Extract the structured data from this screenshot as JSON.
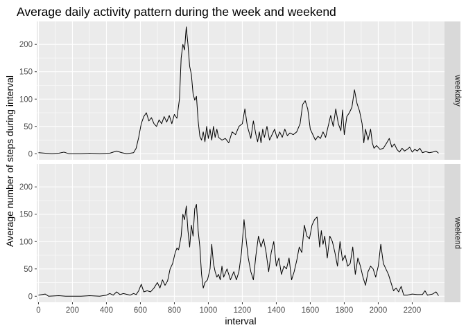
{
  "chart_data": {
    "type": "line",
    "title": "Average daily activity pattern during the week and weekend",
    "xlabel": "interval",
    "ylabel": "Average number of steps during interval",
    "xlim": [
      -10,
      2390
    ],
    "ylim": [
      -11,
      242
    ],
    "xticks": [
      0,
      200,
      400,
      600,
      800,
      1000,
      1200,
      1400,
      1600,
      1800,
      2000,
      2200
    ],
    "yticks": [
      0,
      50,
      100,
      150,
      200
    ],
    "grid": true,
    "panel_background": "#ebebeb",
    "strip_background": "#d9d9d9",
    "line_color": "#000000",
    "facets": [
      {
        "label": "weekday",
        "points": [
          [
            0,
            2
          ],
          [
            40,
            1
          ],
          [
            80,
            0
          ],
          [
            120,
            1
          ],
          [
            150,
            3
          ],
          [
            180,
            0
          ],
          [
            250,
            0
          ],
          [
            300,
            1
          ],
          [
            360,
            0
          ],
          [
            420,
            1
          ],
          [
            460,
            5
          ],
          [
            490,
            2
          ],
          [
            520,
            0
          ],
          [
            560,
            2
          ],
          [
            575,
            10
          ],
          [
            590,
            30
          ],
          [
            605,
            55
          ],
          [
            620,
            68
          ],
          [
            635,
            75
          ],
          [
            650,
            60
          ],
          [
            665,
            66
          ],
          [
            680,
            55
          ],
          [
            695,
            50
          ],
          [
            710,
            62
          ],
          [
            725,
            55
          ],
          [
            740,
            68
          ],
          [
            755,
            58
          ],
          [
            770,
            70
          ],
          [
            785,
            55
          ],
          [
            800,
            72
          ],
          [
            815,
            65
          ],
          [
            830,
            100
          ],
          [
            840,
            175
          ],
          [
            850,
            200
          ],
          [
            860,
            190
          ],
          [
            870,
            232
          ],
          [
            880,
            200
          ],
          [
            890,
            160
          ],
          [
            900,
            145
          ],
          [
            910,
            110
          ],
          [
            920,
            98
          ],
          [
            930,
            105
          ],
          [
            940,
            60
          ],
          [
            950,
            32
          ],
          [
            960,
            25
          ],
          [
            970,
            40
          ],
          [
            980,
            22
          ],
          [
            990,
            50
          ],
          [
            1000,
            28
          ],
          [
            1010,
            45
          ],
          [
            1020,
            25
          ],
          [
            1030,
            50
          ],
          [
            1040,
            30
          ],
          [
            1050,
            45
          ],
          [
            1060,
            30
          ],
          [
            1080,
            25
          ],
          [
            1100,
            28
          ],
          [
            1120,
            20
          ],
          [
            1140,
            40
          ],
          [
            1160,
            35
          ],
          [
            1180,
            50
          ],
          [
            1200,
            55
          ],
          [
            1215,
            82
          ],
          [
            1230,
            50
          ],
          [
            1250,
            28
          ],
          [
            1265,
            60
          ],
          [
            1280,
            35
          ],
          [
            1290,
            22
          ],
          [
            1300,
            40
          ],
          [
            1310,
            20
          ],
          [
            1320,
            45
          ],
          [
            1330,
            30
          ],
          [
            1345,
            50
          ],
          [
            1360,
            25
          ],
          [
            1375,
            35
          ],
          [
            1390,
            45
          ],
          [
            1405,
            28
          ],
          [
            1420,
            40
          ],
          [
            1435,
            30
          ],
          [
            1450,
            45
          ],
          [
            1465,
            33
          ],
          [
            1480,
            38
          ],
          [
            1500,
            35
          ],
          [
            1520,
            40
          ],
          [
            1540,
            55
          ],
          [
            1555,
            90
          ],
          [
            1570,
            97
          ],
          [
            1585,
            82
          ],
          [
            1600,
            45
          ],
          [
            1615,
            35
          ],
          [
            1630,
            25
          ],
          [
            1645,
            32
          ],
          [
            1660,
            28
          ],
          [
            1675,
            40
          ],
          [
            1690,
            30
          ],
          [
            1705,
            50
          ],
          [
            1720,
            70
          ],
          [
            1735,
            50
          ],
          [
            1750,
            82
          ],
          [
            1765,
            55
          ],
          [
            1780,
            42
          ],
          [
            1790,
            80
          ],
          [
            1800,
            35
          ],
          [
            1815,
            68
          ],
          [
            1830,
            75
          ],
          [
            1845,
            85
          ],
          [
            1860,
            117
          ],
          [
            1875,
            92
          ],
          [
            1890,
            78
          ],
          [
            1905,
            55
          ],
          [
            1915,
            20
          ],
          [
            1925,
            45
          ],
          [
            1940,
            25
          ],
          [
            1955,
            45
          ],
          [
            1965,
            20
          ],
          [
            1975,
            10
          ],
          [
            1990,
            15
          ],
          [
            2010,
            8
          ],
          [
            2030,
            10
          ],
          [
            2050,
            20
          ],
          [
            2065,
            28
          ],
          [
            2080,
            12
          ],
          [
            2095,
            18
          ],
          [
            2110,
            8
          ],
          [
            2125,
            3
          ],
          [
            2140,
            10
          ],
          [
            2155,
            5
          ],
          [
            2170,
            8
          ],
          [
            2185,
            12
          ],
          [
            2200,
            3
          ],
          [
            2215,
            8
          ],
          [
            2230,
            5
          ],
          [
            2245,
            10
          ],
          [
            2260,
            2
          ],
          [
            2280,
            4
          ],
          [
            2300,
            2
          ],
          [
            2320,
            3
          ],
          [
            2340,
            5
          ],
          [
            2355,
            1
          ]
        ]
      },
      {
        "label": "weekend",
        "points": [
          [
            0,
            2
          ],
          [
            40,
            4
          ],
          [
            60,
            0
          ],
          [
            120,
            1
          ],
          [
            160,
            0
          ],
          [
            250,
            0
          ],
          [
            300,
            1
          ],
          [
            360,
            0
          ],
          [
            400,
            2
          ],
          [
            420,
            5
          ],
          [
            440,
            2
          ],
          [
            460,
            8
          ],
          [
            480,
            3
          ],
          [
            500,
            5
          ],
          [
            540,
            2
          ],
          [
            560,
            5
          ],
          [
            575,
            3
          ],
          [
            590,
            10
          ],
          [
            605,
            22
          ],
          [
            620,
            8
          ],
          [
            640,
            10
          ],
          [
            660,
            8
          ],
          [
            680,
            15
          ],
          [
            700,
            25
          ],
          [
            715,
            15
          ],
          [
            730,
            30
          ],
          [
            745,
            20
          ],
          [
            760,
            28
          ],
          [
            775,
            50
          ],
          [
            790,
            60
          ],
          [
            805,
            80
          ],
          [
            815,
            88
          ],
          [
            825,
            85
          ],
          [
            840,
            110
          ],
          [
            850,
            150
          ],
          [
            860,
            140
          ],
          [
            870,
            165
          ],
          [
            880,
            120
          ],
          [
            890,
            90
          ],
          [
            900,
            130
          ],
          [
            910,
            110
          ],
          [
            920,
            160
          ],
          [
            930,
            168
          ],
          [
            940,
            120
          ],
          [
            950,
            90
          ],
          [
            960,
            40
          ],
          [
            970,
            15
          ],
          [
            980,
            25
          ],
          [
            995,
            30
          ],
          [
            1010,
            50
          ],
          [
            1020,
            95
          ],
          [
            1030,
            60
          ],
          [
            1040,
            45
          ],
          [
            1050,
            35
          ],
          [
            1060,
            40
          ],
          [
            1070,
            30
          ],
          [
            1080,
            55
          ],
          [
            1090,
            35
          ],
          [
            1110,
            50
          ],
          [
            1130,
            30
          ],
          [
            1150,
            45
          ],
          [
            1165,
            30
          ],
          [
            1180,
            45
          ],
          [
            1195,
            80
          ],
          [
            1210,
            140
          ],
          [
            1220,
            110
          ],
          [
            1235,
            70
          ],
          [
            1250,
            45
          ],
          [
            1265,
            30
          ],
          [
            1280,
            75
          ],
          [
            1295,
            110
          ],
          [
            1310,
            90
          ],
          [
            1325,
            105
          ],
          [
            1340,
            80
          ],
          [
            1355,
            45
          ],
          [
            1370,
            80
          ],
          [
            1385,
            100
          ],
          [
            1400,
            55
          ],
          [
            1415,
            70
          ],
          [
            1430,
            40
          ],
          [
            1445,
            55
          ],
          [
            1460,
            50
          ],
          [
            1475,
            70
          ],
          [
            1490,
            30
          ],
          [
            1505,
            45
          ],
          [
            1520,
            65
          ],
          [
            1535,
            90
          ],
          [
            1550,
            80
          ],
          [
            1565,
            130
          ],
          [
            1580,
            110
          ],
          [
            1595,
            105
          ],
          [
            1610,
            130
          ],
          [
            1625,
            140
          ],
          [
            1640,
            145
          ],
          [
            1655,
            90
          ],
          [
            1665,
            120
          ],
          [
            1675,
            95
          ],
          [
            1685,
            110
          ],
          [
            1700,
            70
          ],
          [
            1715,
            110
          ],
          [
            1730,
            100
          ],
          [
            1745,
            80
          ],
          [
            1760,
            55
          ],
          [
            1775,
            100
          ],
          [
            1790,
            65
          ],
          [
            1805,
            75
          ],
          [
            1820,
            55
          ],
          [
            1835,
            60
          ],
          [
            1850,
            90
          ],
          [
            1865,
            40
          ],
          [
            1880,
            70
          ],
          [
            1895,
            55
          ],
          [
            1910,
            35
          ],
          [
            1925,
            20
          ],
          [
            1940,
            45
          ],
          [
            1955,
            55
          ],
          [
            1970,
            50
          ],
          [
            1985,
            35
          ],
          [
            2000,
            55
          ],
          [
            2015,
            95
          ],
          [
            2030,
            60
          ],
          [
            2045,
            50
          ],
          [
            2060,
            40
          ],
          [
            2075,
            25
          ],
          [
            2090,
            10
          ],
          [
            2105,
            15
          ],
          [
            2120,
            8
          ],
          [
            2135,
            18
          ],
          [
            2150,
            2
          ],
          [
            2170,
            2
          ],
          [
            2200,
            4
          ],
          [
            2230,
            3
          ],
          [
            2260,
            3
          ],
          [
            2275,
            10
          ],
          [
            2290,
            2
          ],
          [
            2320,
            4
          ],
          [
            2340,
            8
          ],
          [
            2355,
            1
          ]
        ]
      }
    ]
  }
}
